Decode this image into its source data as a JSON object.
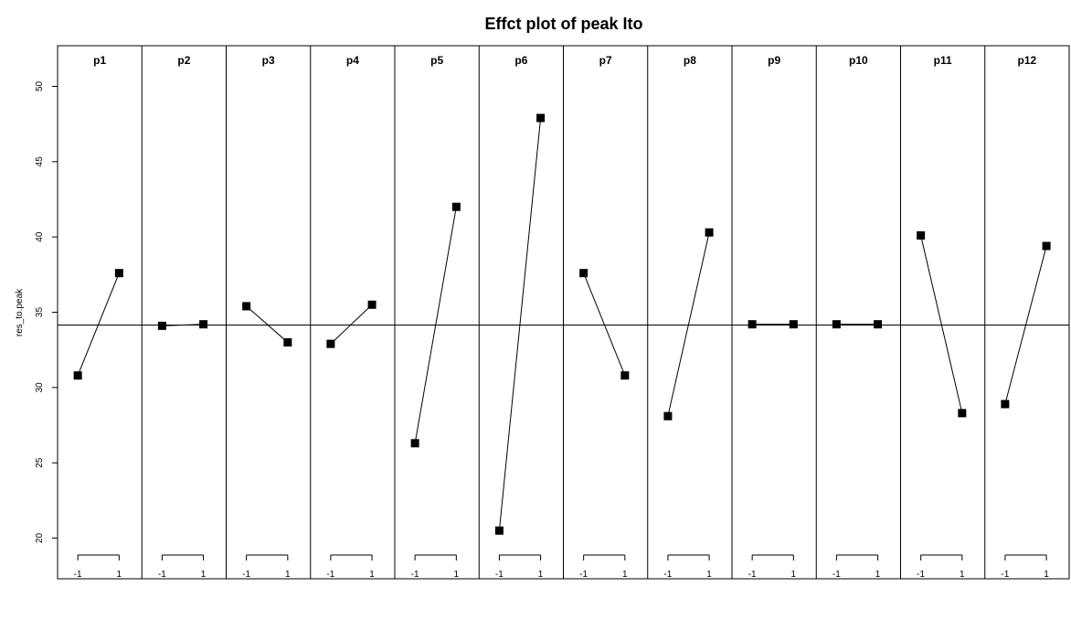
{
  "chart_data": {
    "type": "line",
    "title": "Effct plot of peak Ito",
    "ylabel": "res_to.peak",
    "xlabel": "",
    "ylim": [
      17.3,
      52.7
    ],
    "yticks": [
      20,
      25,
      30,
      35,
      40,
      45,
      50
    ],
    "x_levels": [
      "-1",
      "1"
    ],
    "grand_mean": 34.15,
    "marker": "filled-square",
    "line_color": "#000000",
    "panels": [
      {
        "name": "p1",
        "values": [
          30.8,
          37.6
        ]
      },
      {
        "name": "p2",
        "values": [
          34.1,
          34.2
        ]
      },
      {
        "name": "p3",
        "values": [
          35.4,
          33.0
        ]
      },
      {
        "name": "p4",
        "values": [
          32.9,
          35.5
        ]
      },
      {
        "name": "p5",
        "values": [
          26.3,
          42.0
        ]
      },
      {
        "name": "p6",
        "values": [
          20.5,
          47.9
        ]
      },
      {
        "name": "p7",
        "values": [
          37.6,
          30.8
        ]
      },
      {
        "name": "p8",
        "values": [
          28.1,
          40.3
        ]
      },
      {
        "name": "p9",
        "values": [
          34.2,
          34.2
        ]
      },
      {
        "name": "p10",
        "values": [
          34.2,
          34.2
        ]
      },
      {
        "name": "p11",
        "values": [
          40.1,
          28.3
        ]
      },
      {
        "name": "p12",
        "values": [
          28.9,
          39.4
        ]
      }
    ]
  }
}
